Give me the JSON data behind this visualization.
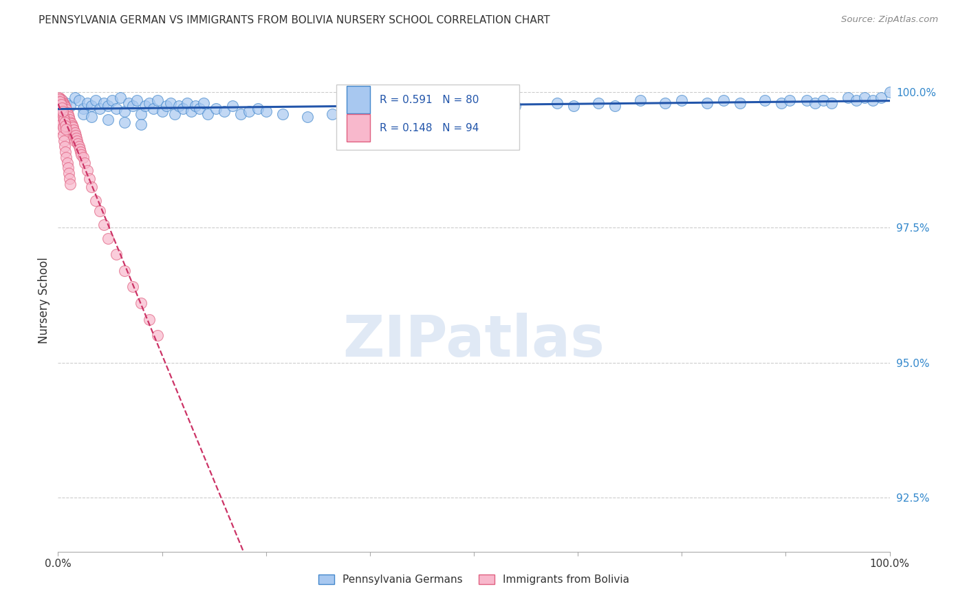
{
  "title": "PENNSYLVANIA GERMAN VS IMMIGRANTS FROM BOLIVIA NURSERY SCHOOL CORRELATION CHART",
  "source": "Source: ZipAtlas.com",
  "ylabel": "Nursery School",
  "yticks": [
    92.5,
    95.0,
    97.5,
    100.0
  ],
  "ytick_labels": [
    "92.5%",
    "95.0%",
    "97.5%",
    "100.0%"
  ],
  "watermark_text": "ZIPatlas",
  "legend_blue_r": "R = 0.591",
  "legend_blue_n": "N = 80",
  "legend_pink_r": "R = 0.148",
  "legend_pink_n": "N = 94",
  "legend_blue_label": "Pennsylvania Germans",
  "legend_pink_label": "Immigrants from Bolivia",
  "blue_scatter_color": "#A8C8F0",
  "blue_edge_color": "#4488CC",
  "blue_line_color": "#2255AA",
  "pink_scatter_color": "#F8B8CC",
  "pink_edge_color": "#E06080",
  "pink_line_color": "#CC3366",
  "background_color": "#ffffff",
  "grid_color": "#cccccc",
  "title_color": "#333333",
  "blue_x": [
    0.5,
    1.0,
    1.5,
    2.0,
    2.5,
    3.0,
    3.5,
    4.0,
    4.5,
    5.0,
    5.5,
    6.0,
    6.5,
    7.0,
    7.5,
    8.0,
    8.5,
    9.0,
    9.5,
    10.0,
    10.5,
    11.0,
    11.5,
    12.0,
    12.5,
    13.0,
    13.5,
    14.0,
    14.5,
    15.0,
    15.5,
    16.0,
    16.5,
    17.0,
    17.5,
    18.0,
    19.0,
    20.0,
    21.0,
    22.0,
    23.0,
    24.0,
    25.0,
    27.0,
    30.0,
    33.0,
    36.0,
    40.0,
    45.0,
    48.0,
    50.0,
    55.0,
    60.0,
    62.0,
    65.0,
    67.0,
    70.0,
    73.0,
    75.0,
    78.0,
    80.0,
    82.0,
    85.0,
    87.0,
    88.0,
    90.0,
    91.0,
    92.0,
    93.0,
    95.0,
    96.0,
    97.0,
    98.0,
    99.0,
    100.0,
    3.0,
    4.0,
    6.0,
    8.0,
    10.0
  ],
  "blue_y": [
    99.85,
    99.8,
    99.75,
    99.9,
    99.85,
    99.7,
    99.8,
    99.75,
    99.85,
    99.7,
    99.8,
    99.75,
    99.85,
    99.7,
    99.9,
    99.65,
    99.8,
    99.75,
    99.85,
    99.6,
    99.75,
    99.8,
    99.7,
    99.85,
    99.65,
    99.75,
    99.8,
    99.6,
    99.75,
    99.7,
    99.8,
    99.65,
    99.75,
    99.7,
    99.8,
    99.6,
    99.7,
    99.65,
    99.75,
    99.6,
    99.65,
    99.7,
    99.65,
    99.6,
    99.55,
    99.6,
    99.65,
    99.6,
    99.7,
    99.65,
    99.7,
    99.75,
    99.8,
    99.75,
    99.8,
    99.75,
    99.85,
    99.8,
    99.85,
    99.8,
    99.85,
    99.8,
    99.85,
    99.8,
    99.85,
    99.85,
    99.8,
    99.85,
    99.8,
    99.9,
    99.85,
    99.9,
    99.85,
    99.9,
    100.0,
    99.6,
    99.55,
    99.5,
    99.45,
    99.4
  ],
  "pink_x": [
    0.1,
    0.2,
    0.3,
    0.3,
    0.4,
    0.4,
    0.5,
    0.5,
    0.6,
    0.6,
    0.7,
    0.7,
    0.8,
    0.8,
    0.9,
    0.9,
    1.0,
    1.0,
    1.1,
    1.1,
    1.2,
    1.2,
    1.3,
    1.3,
    1.4,
    1.4,
    1.5,
    1.5,
    1.6,
    1.6,
    1.7,
    1.7,
    1.8,
    1.8,
    1.9,
    1.9,
    2.0,
    2.0,
    2.1,
    2.2,
    2.3,
    2.4,
    2.5,
    2.6,
    2.7,
    2.8,
    3.0,
    3.2,
    3.5,
    3.8,
    4.0,
    4.5,
    5.0,
    5.5,
    6.0,
    7.0,
    8.0,
    9.0,
    10.0,
    11.0,
    12.0,
    0.3,
    0.4,
    0.5,
    0.6,
    0.7,
    0.8,
    0.9,
    1.0,
    1.1,
    1.2,
    1.3,
    1.4,
    1.5,
    0.2,
    0.3,
    0.4,
    0.5,
    0.6,
    0.1,
    0.2,
    0.3,
    0.4,
    0.5,
    0.6,
    0.7,
    0.8,
    0.9,
    1.0,
    0.15,
    0.25,
    0.35,
    0.45,
    0.55
  ],
  "pink_y": [
    99.9,
    99.85,
    99.8,
    99.88,
    99.82,
    99.78,
    99.85,
    99.75,
    99.8,
    99.72,
    99.78,
    99.7,
    99.75,
    99.65,
    99.72,
    99.6,
    99.68,
    99.55,
    99.62,
    99.5,
    99.58,
    99.45,
    99.55,
    99.42,
    99.5,
    99.38,
    99.45,
    99.35,
    99.42,
    99.3,
    99.38,
    99.25,
    99.35,
    99.2,
    99.3,
    99.15,
    99.25,
    99.1,
    99.2,
    99.15,
    99.1,
    99.05,
    99.0,
    98.95,
    98.9,
    98.85,
    98.8,
    98.7,
    98.55,
    98.4,
    98.25,
    98.0,
    97.8,
    97.55,
    97.3,
    97.0,
    96.7,
    96.4,
    96.1,
    95.8,
    95.5,
    99.5,
    99.4,
    99.3,
    99.2,
    99.1,
    99.0,
    98.9,
    98.8,
    98.7,
    98.6,
    98.5,
    98.4,
    98.3,
    99.6,
    99.55,
    99.48,
    99.42,
    99.36,
    99.82,
    99.78,
    99.72,
    99.68,
    99.62,
    99.56,
    99.5,
    99.44,
    99.38,
    99.32,
    99.88,
    99.83,
    99.77,
    99.71,
    99.65
  ]
}
